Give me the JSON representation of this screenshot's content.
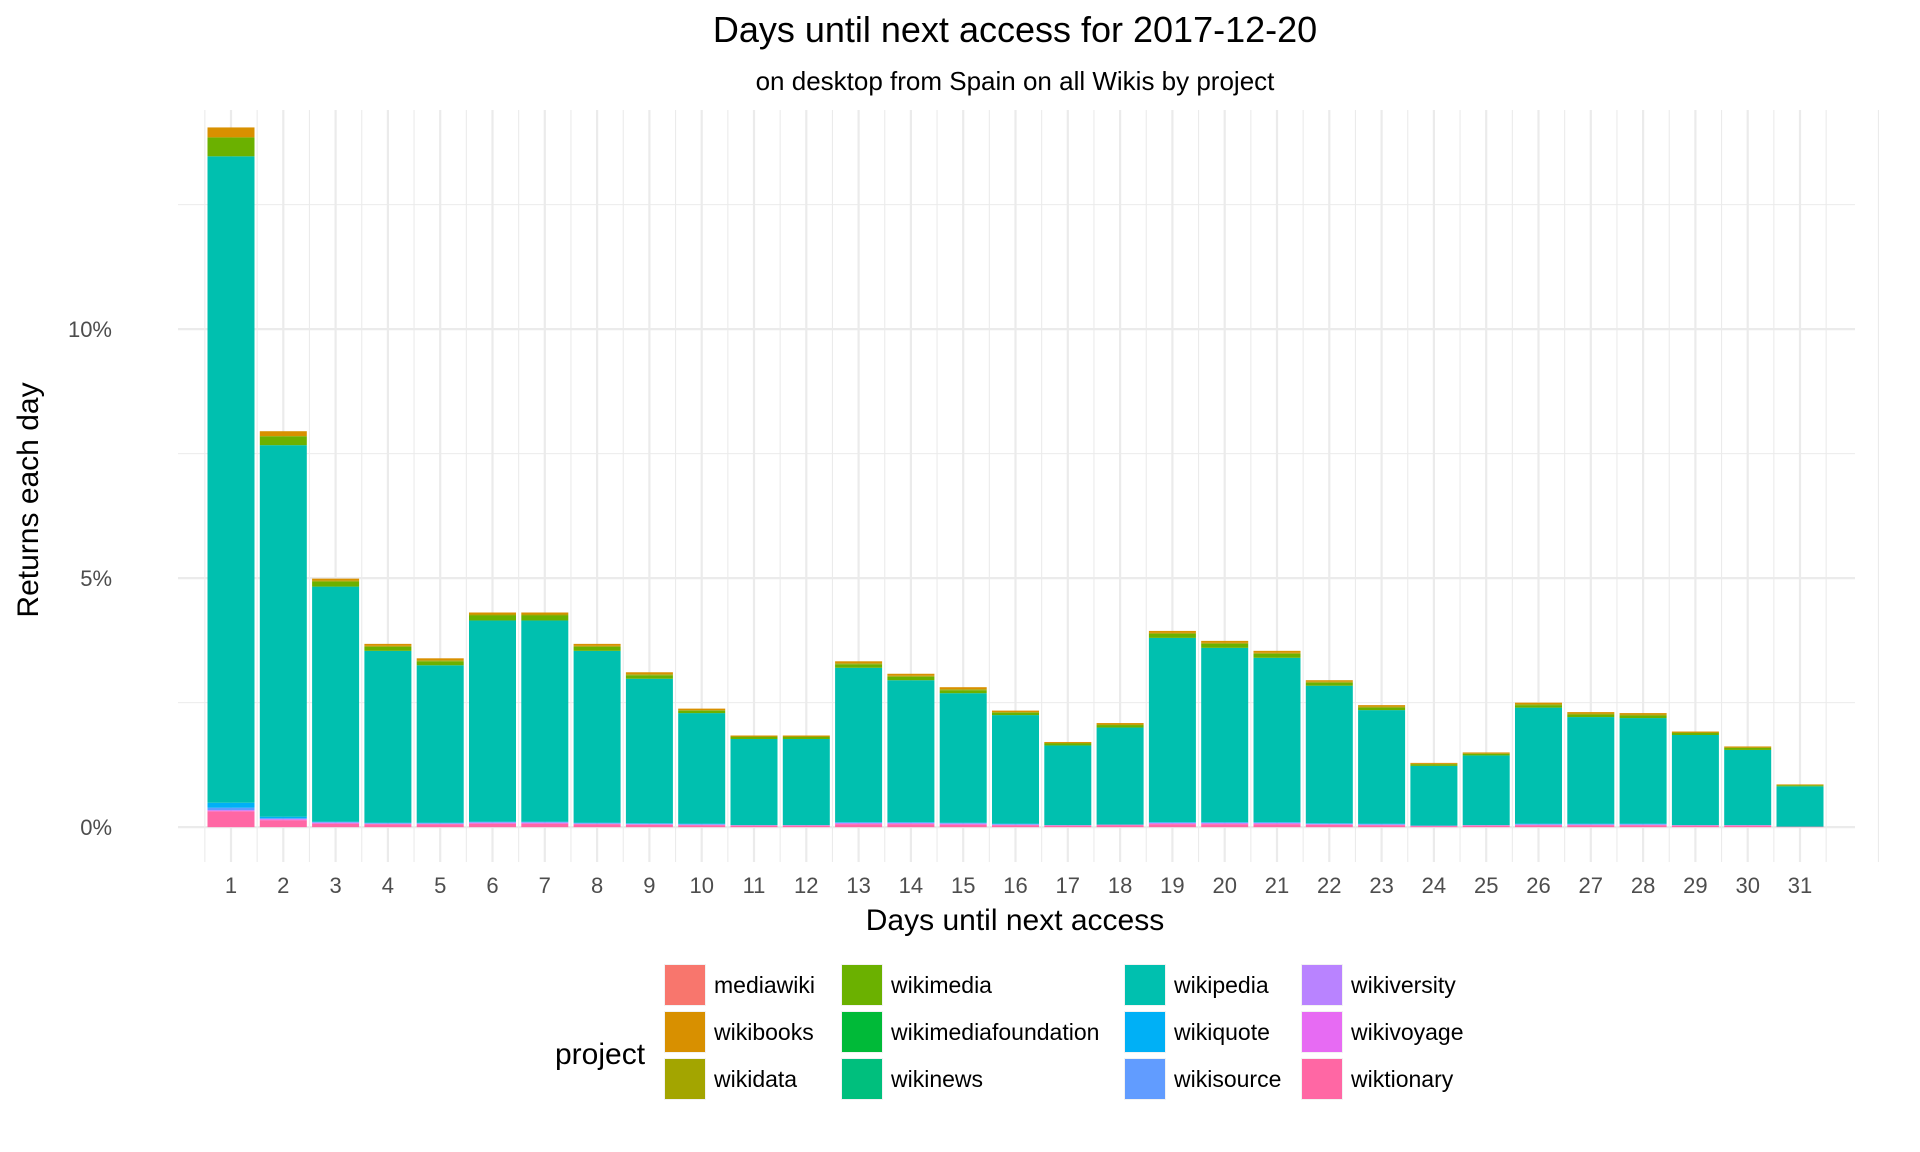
{
  "chart_data": {
    "type": "bar",
    "stacked": true,
    "title": "Days until next access for 2017-12-20",
    "subtitle": "on desktop from Spain on all Wikis by project",
    "xlabel": "Days until next access",
    "ylabel": "Returns each day",
    "ylim": [
      -0.7,
      14.4
    ],
    "yticks": [
      {
        "value": 0,
        "label": "0%"
      },
      {
        "value": 5,
        "label": "5%"
      },
      {
        "value": 10,
        "label": "10%"
      }
    ],
    "grid": true,
    "legend_position": "bottom",
    "legend_title": "project",
    "categories": [
      "1",
      "2",
      "3",
      "4",
      "5",
      "6",
      "7",
      "8",
      "9",
      "10",
      "11",
      "12",
      "13",
      "14",
      "15",
      "16",
      "17",
      "18",
      "19",
      "20",
      "21",
      "22",
      "23",
      "24",
      "25",
      "26",
      "27",
      "28",
      "29",
      "30",
      "31"
    ],
    "series": [
      {
        "name": "mediawiki",
        "color": "#F8766D",
        "values": [
          0,
          0,
          0,
          0,
          0,
          0,
          0,
          0,
          0,
          0,
          0,
          0,
          0,
          0,
          0,
          0,
          0,
          0,
          0,
          0,
          0,
          0,
          0,
          0,
          0,
          0,
          0,
          0,
          0,
          0,
          0
        ]
      },
      {
        "name": "wikibooks",
        "color": "#D89000",
        "values": [
          0.2,
          0.1,
          0.04,
          0.04,
          0.04,
          0.04,
          0.04,
          0.04,
          0.04,
          0.03,
          0.02,
          0.02,
          0.04,
          0.04,
          0.04,
          0.03,
          0.02,
          0.03,
          0.04,
          0.04,
          0.04,
          0.03,
          0.03,
          0.02,
          0.02,
          0.03,
          0.03,
          0.03,
          0.02,
          0.02,
          0.01
        ]
      },
      {
        "name": "wikidata",
        "color": "#A3A500",
        "values": [
          0,
          0,
          0.02,
          0.02,
          0.02,
          0.02,
          0.02,
          0.02,
          0.02,
          0.01,
          0.01,
          0.01,
          0.02,
          0.02,
          0.02,
          0.01,
          0.01,
          0.01,
          0.02,
          0.02,
          0.02,
          0.02,
          0.02,
          0.01,
          0.01,
          0.02,
          0.02,
          0.02,
          0.01,
          0.01,
          0.01
        ]
      },
      {
        "name": "wikimedia",
        "color": "#6BB100",
        "values": [
          0.38,
          0.18,
          0.1,
          0.08,
          0.08,
          0.1,
          0.1,
          0.08,
          0.07,
          0.05,
          0.04,
          0.04,
          0.07,
          0.07,
          0.06,
          0.05,
          0.04,
          0.05,
          0.08,
          0.08,
          0.08,
          0.06,
          0.05,
          0.03,
          0.03,
          0.05,
          0.05,
          0.05,
          0.04,
          0.04,
          0.02
        ]
      },
      {
        "name": "wikimediafoundation",
        "color": "#00BA38",
        "values": [
          0,
          0,
          0,
          0,
          0,
          0,
          0,
          0,
          0,
          0,
          0,
          0,
          0,
          0,
          0,
          0,
          0,
          0,
          0,
          0,
          0,
          0,
          0,
          0,
          0,
          0,
          0,
          0,
          0,
          0,
          0
        ]
      },
      {
        "name": "wikinews",
        "color": "#00BF7D",
        "values": [
          0,
          0,
          0,
          0,
          0,
          0,
          0,
          0,
          0,
          0,
          0,
          0,
          0,
          0,
          0,
          0,
          0,
          0,
          0,
          0,
          0,
          0,
          0,
          0,
          0,
          0,
          0,
          0,
          0,
          0,
          0
        ]
      },
      {
        "name": "wikipedia",
        "color": "#00C0AF",
        "values": [
          12.98,
          7.46,
          4.72,
          3.45,
          3.16,
          4.04,
          4.04,
          3.45,
          2.9,
          2.22,
          1.73,
          1.73,
          3.1,
          2.85,
          2.6,
          2.18,
          1.6,
          1.95,
          3.7,
          3.5,
          3.3,
          2.76,
          2.28,
          1.2,
          1.4,
          2.33,
          2.14,
          2.12,
          1.81,
          1.51,
          0.81
        ]
      },
      {
        "name": "wikiquote",
        "color": "#00B0F6",
        "values": [
          0.1,
          0.03,
          0.01,
          0.01,
          0.01,
          0.01,
          0.01,
          0.01,
          0.01,
          0.01,
          0,
          0,
          0.01,
          0.01,
          0.01,
          0.01,
          0,
          0,
          0.01,
          0.01,
          0.01,
          0.01,
          0.01,
          0,
          0,
          0.01,
          0.01,
          0.01,
          0,
          0,
          0
        ]
      },
      {
        "name": "wikisource",
        "color": "#619CFF",
        "values": [
          0.05,
          0.02,
          0.01,
          0.01,
          0.01,
          0.01,
          0.01,
          0.01,
          0.01,
          0.01,
          0,
          0,
          0.01,
          0.01,
          0.01,
          0.01,
          0,
          0,
          0.01,
          0.01,
          0.01,
          0.01,
          0.01,
          0,
          0,
          0.01,
          0.01,
          0.01,
          0,
          0,
          0
        ]
      },
      {
        "name": "wikiversity",
        "color": "#B983FF",
        "values": [
          0,
          0,
          0,
          0,
          0,
          0,
          0,
          0,
          0,
          0,
          0,
          0,
          0,
          0,
          0,
          0,
          0,
          0,
          0,
          0,
          0,
          0,
          0,
          0,
          0,
          0,
          0,
          0,
          0,
          0,
          0
        ]
      },
      {
        "name": "wikivoyage",
        "color": "#E76BF3",
        "values": [
          0.02,
          0.02,
          0.02,
          0.01,
          0.01,
          0.02,
          0.02,
          0.01,
          0.01,
          0.01,
          0.01,
          0.01,
          0.02,
          0.02,
          0.02,
          0.01,
          0.01,
          0.01,
          0.02,
          0.02,
          0.02,
          0.01,
          0.01,
          0.01,
          0.01,
          0.01,
          0.01,
          0.01,
          0.01,
          0.01,
          0
        ]
      },
      {
        "name": "wiktionary",
        "color": "#FF67A4",
        "values": [
          0.32,
          0.14,
          0.07,
          0.06,
          0.06,
          0.07,
          0.07,
          0.06,
          0.05,
          0.04,
          0.03,
          0.03,
          0.06,
          0.06,
          0.05,
          0.04,
          0.03,
          0.04,
          0.06,
          0.06,
          0.06,
          0.05,
          0.04,
          0.02,
          0.03,
          0.04,
          0.04,
          0.04,
          0.03,
          0.03,
          0.01
        ]
      }
    ],
    "stack_order_bottom_to_top": [
      "wiktionary",
      "wikivoyage",
      "wikiversity",
      "wikisource",
      "wikiquote",
      "wikipedia",
      "wikinews",
      "wikimediafoundation",
      "wikimedia",
      "wikidata",
      "wikibooks",
      "mediawiki"
    ]
  }
}
